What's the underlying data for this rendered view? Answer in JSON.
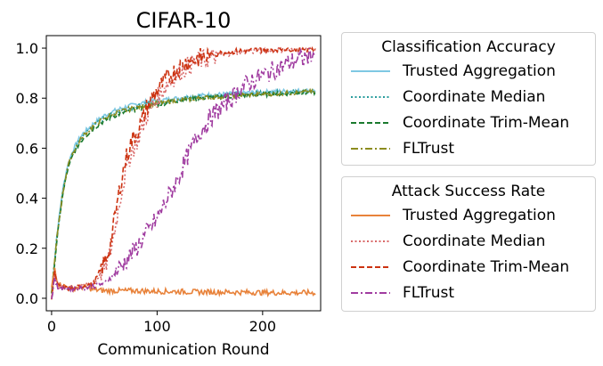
{
  "chart_data": {
    "type": "line",
    "title": "CIFAR-10",
    "xlabel": "Communication Round",
    "ylabel": "",
    "xlim": [
      -5,
      255
    ],
    "ylim": [
      -0.05,
      1.05
    ],
    "x_ticks": [
      0,
      100,
      200
    ],
    "x_tick_labels": [
      "0",
      "100",
      "200"
    ],
    "y_ticks": [
      0.0,
      0.2,
      0.4,
      0.6,
      0.8,
      1.0
    ],
    "y_tick_labels": [
      "0.0",
      "0.2",
      "0.4",
      "0.6",
      "0.8",
      "1.0"
    ],
    "legend_groups": [
      {
        "title": "Classification Accuracy",
        "series": [
          {
            "name": "Trusted Aggregation",
            "color": "#7ec8e3",
            "dash": "solid"
          },
          {
            "name": "Coordinate Median",
            "color": "#2a9d9d",
            "dash": "dotted"
          },
          {
            "name": "Coordinate Trim-Mean",
            "color": "#1a7a2e",
            "dash": "dashed"
          },
          {
            "name": "FLTrust",
            "color": "#8c8c1e",
            "dash": "dashdot"
          }
        ]
      },
      {
        "title": "Attack Success Rate",
        "series": [
          {
            "name": "Trusted Aggregation",
            "color": "#e8823a",
            "dash": "solid"
          },
          {
            "name": "Coordinate Median",
            "color": "#d96a6a",
            "dash": "dotted"
          },
          {
            "name": "Coordinate Trim-Mean",
            "color": "#cc3311",
            "dash": "dashed"
          },
          {
            "name": "FLTrust",
            "color": "#a03ca0",
            "dash": "dashdot"
          }
        ]
      }
    ],
    "series": [
      {
        "group": "Classification Accuracy",
        "name": "Trusted Aggregation",
        "color": "#7ec8e3",
        "dash": "solid",
        "x": [
          0,
          5,
          10,
          15,
          20,
          25,
          30,
          40,
          50,
          60,
          70,
          80,
          90,
          100,
          120,
          140,
          160,
          180,
          200,
          220,
          240,
          250
        ],
        "y": [
          0.02,
          0.25,
          0.42,
          0.53,
          0.59,
          0.63,
          0.66,
          0.7,
          0.73,
          0.75,
          0.765,
          0.775,
          0.785,
          0.79,
          0.8,
          0.81,
          0.815,
          0.82,
          0.825,
          0.828,
          0.83,
          0.83
        ]
      },
      {
        "group": "Classification Accuracy",
        "name": "Coordinate Median",
        "color": "#2a9d9d",
        "dash": "dotted",
        "x": [
          0,
          5,
          10,
          15,
          20,
          25,
          30,
          40,
          50,
          60,
          70,
          80,
          90,
          100,
          120,
          140,
          160,
          180,
          200,
          220,
          240,
          250
        ],
        "y": [
          0.02,
          0.24,
          0.41,
          0.52,
          0.58,
          0.62,
          0.65,
          0.69,
          0.72,
          0.74,
          0.755,
          0.765,
          0.775,
          0.78,
          0.795,
          0.805,
          0.81,
          0.815,
          0.82,
          0.823,
          0.826,
          0.827
        ]
      },
      {
        "group": "Classification Accuracy",
        "name": "Coordinate Trim-Mean",
        "color": "#1a7a2e",
        "dash": "dashed",
        "x": [
          0,
          5,
          10,
          15,
          20,
          25,
          30,
          40,
          50,
          60,
          70,
          80,
          90,
          100,
          120,
          140,
          160,
          180,
          200,
          220,
          240,
          250
        ],
        "y": [
          0.02,
          0.23,
          0.4,
          0.51,
          0.57,
          0.61,
          0.64,
          0.68,
          0.71,
          0.73,
          0.745,
          0.755,
          0.765,
          0.775,
          0.79,
          0.8,
          0.805,
          0.81,
          0.815,
          0.818,
          0.822,
          0.823
        ]
      },
      {
        "group": "Classification Accuracy",
        "name": "FLTrust",
        "color": "#8c8c1e",
        "dash": "dashdot",
        "x": [
          0,
          5,
          10,
          15,
          20,
          25,
          30,
          40,
          50,
          60,
          70,
          80,
          90,
          100,
          120,
          140,
          160,
          180,
          200,
          220,
          240,
          250
        ],
        "y": [
          0.02,
          0.24,
          0.41,
          0.52,
          0.58,
          0.62,
          0.65,
          0.69,
          0.72,
          0.74,
          0.752,
          0.762,
          0.772,
          0.78,
          0.792,
          0.8,
          0.806,
          0.812,
          0.816,
          0.82,
          0.824,
          0.825
        ]
      },
      {
        "group": "Attack Success Rate",
        "name": "Trusted Aggregation",
        "color": "#e8823a",
        "dash": "solid",
        "x": [
          0,
          3,
          6,
          10,
          20,
          30,
          40,
          50,
          60,
          80,
          100,
          120,
          140,
          160,
          180,
          200,
          220,
          240,
          250
        ],
        "y": [
          0.04,
          0.12,
          0.06,
          0.05,
          0.04,
          0.045,
          0.035,
          0.03,
          0.03,
          0.03,
          0.028,
          0.027,
          0.025,
          0.025,
          0.024,
          0.023,
          0.022,
          0.022,
          0.022
        ]
      },
      {
        "group": "Attack Success Rate",
        "name": "Coordinate Median",
        "color": "#d96a6a",
        "dash": "dotted",
        "x": [
          0,
          3,
          6,
          10,
          20,
          30,
          40,
          50,
          55,
          60,
          65,
          70,
          75,
          80,
          85,
          90,
          95,
          100,
          110,
          120,
          130,
          140,
          150,
          160,
          180,
          200,
          220,
          240,
          250
        ],
        "y": [
          0.0,
          0.1,
          0.05,
          0.04,
          0.04,
          0.05,
          0.06,
          0.12,
          0.17,
          0.28,
          0.4,
          0.5,
          0.58,
          0.62,
          0.67,
          0.73,
          0.76,
          0.8,
          0.86,
          0.9,
          0.93,
          0.95,
          0.96,
          0.975,
          0.985,
          0.99,
          0.995,
          0.997,
          0.998
        ]
      },
      {
        "group": "Attack Success Rate",
        "name": "Coordinate Trim-Mean",
        "color": "#cc3311",
        "dash": "dashed",
        "x": [
          0,
          3,
          6,
          10,
          20,
          30,
          40,
          50,
          55,
          60,
          65,
          70,
          75,
          80,
          85,
          90,
          95,
          100,
          110,
          120,
          130,
          140,
          150,
          160,
          180,
          200,
          220,
          240,
          250
        ],
        "y": [
          0.0,
          0.1,
          0.05,
          0.04,
          0.04,
          0.05,
          0.06,
          0.14,
          0.2,
          0.32,
          0.45,
          0.55,
          0.62,
          0.66,
          0.7,
          0.76,
          0.8,
          0.83,
          0.88,
          0.92,
          0.95,
          0.96,
          0.97,
          0.98,
          0.99,
          0.995,
          0.997,
          0.998,
          0.998
        ]
      },
      {
        "group": "Attack Success Rate",
        "name": "FLTrust",
        "color": "#a03ca0",
        "dash": "dashdot",
        "x": [
          0,
          3,
          6,
          10,
          20,
          30,
          40,
          50,
          60,
          70,
          80,
          90,
          100,
          110,
          120,
          130,
          140,
          150,
          160,
          170,
          180,
          190,
          200,
          210,
          220,
          230,
          240,
          250
        ],
        "y": [
          0.0,
          0.08,
          0.04,
          0.04,
          0.04,
          0.04,
          0.05,
          0.06,
          0.1,
          0.15,
          0.2,
          0.26,
          0.32,
          0.4,
          0.48,
          0.58,
          0.66,
          0.72,
          0.76,
          0.8,
          0.84,
          0.87,
          0.89,
          0.91,
          0.93,
          0.95,
          0.96,
          0.975
        ]
      }
    ]
  }
}
